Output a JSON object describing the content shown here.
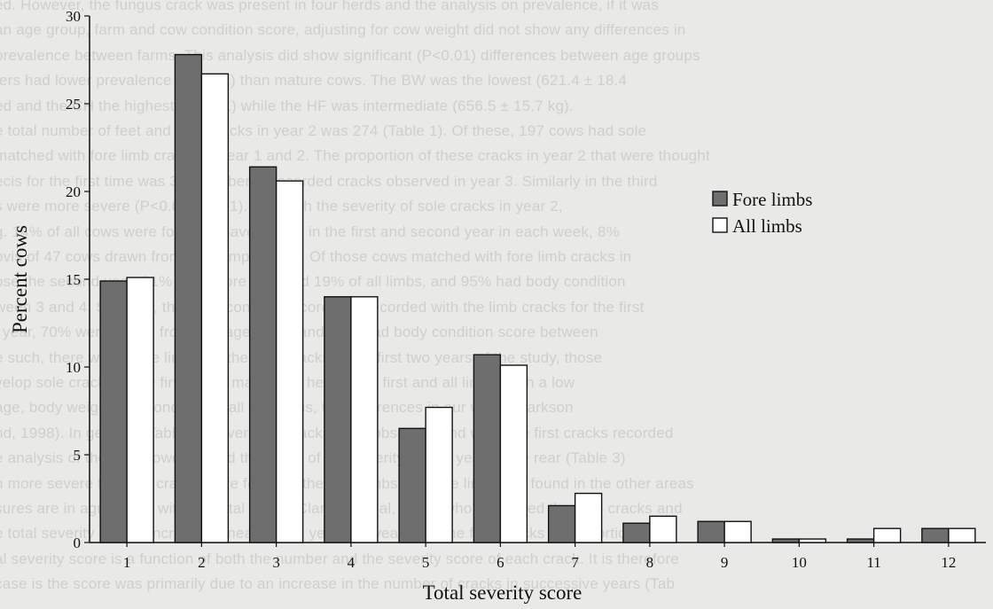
{
  "background_text": [
    "ed.  However, the fungus crack was present in four herds and the analysis on prevalence, if it was",
    "an age group, farm and cow condition score, adjusting for cow weight did not show any differences in",
    "prevalence between farms. This analysis did show significant (P<0.01) differences between age groups",
    "fers had lower prevalence (P<0.01) than mature cows.  The BW was the lowest (621.4 ± 18.4",
    "ed and the CH the highest  (p<0.01)  while the HF was intermediate (656.5 ± 15.7 kg).",
    "e total number of feet and sole cracks in year 2 was 274 (Table 1).  Of these, 197 cows had sole",
    "matched with fore limb cracks in year 1 and 2.  The proportion of these cracks in year 2 that were thought",
    "ecis for the first time was 36.  Number of recorded cracks observed in year 3.  Similarly in the third",
    "s were more severe (P<0.01) (Fig 1).  Of which the severity of sole cracks in year 2,",
    "g. 14% of all cows were found to have cracks in the first and second year in each week, 8%",
    "ovis of 47 cows drawn from the sample of 27.  Of those cows matched with fore limb cracks in",
    "ose the second year, 81% of the fore limb and 19% of all limbs, and 95% had body condition",
    "ween 3 and 4.  Similarly, the body condition score was recorded with the limb cracks for the first",
    "l year, 70% were drawn from one age group and 30% had body condition score between",
    "e such, there was a fore limb and the sole cracks in the first two years of the study, those",
    "velop sole cracks in the first years may fail to heal in the first and all limbs, with a low",
    "age, body weight and condition in all the farms, the differences in our work (Clarkson",
    "nd, 1998). In general (Table 2), severity of cracks were observed and were the first cracks recorded",
    "e analysis of the site, however, and the effect of the severity on the year of the rear (Table 3)",
    "h more severe types of cracks were found in the hind limbs, the fore limbs are found in the other areas",
    "sures are in agreement with the total score (Clarkson et al, 1996) who compared the sole cracks and",
    "e total severity scores increased linearly from year 1 to year 3 for the fore cracks in proportion the",
    "al severity score is a function of both the number and the severity score of each crack. It is therefore",
    "case is the score was primarily due to an increase in the number of cracks in successive years (Tab"
  ],
  "chart_data": {
    "type": "bar",
    "title": "",
    "xlabel": "Total severity score",
    "ylabel": "Percent cows",
    "ylim": [
      0,
      30
    ],
    "yticks": [
      0,
      5,
      10,
      15,
      20,
      25,
      30
    ],
    "categories": [
      "1",
      "2",
      "3",
      "4",
      "5",
      "6",
      "7",
      "8",
      "9",
      "10",
      "11",
      "12"
    ],
    "series": [
      {
        "name": "Fore limbs",
        "color": "#6e6e6e",
        "values": [
          14.9,
          27.8,
          21.4,
          14.0,
          6.5,
          10.7,
          2.1,
          1.1,
          1.2,
          0.2,
          0.2,
          0.8
        ]
      },
      {
        "name": "All limbs",
        "color": "#ffffff",
        "values": [
          15.1,
          26.7,
          20.6,
          14.0,
          7.7,
          10.1,
          2.8,
          1.5,
          1.2,
          0.2,
          0.8,
          0.8
        ]
      }
    ],
    "legend_position": "top-right",
    "grid": false
  }
}
